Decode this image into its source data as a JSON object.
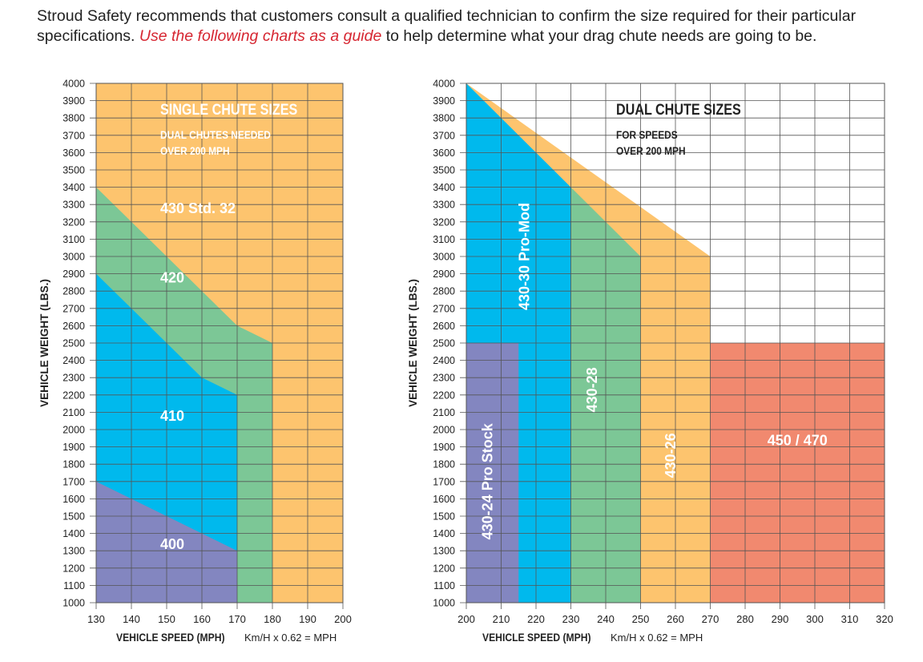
{
  "intro": {
    "text_before": "Stroud Safety recommends that customers consult a qualified technician to confirm the size required for their particular specifications.",
    "link_text": "Use the following charts as a guide",
    "text_after": "to help determine what your drag chute needs are going to be."
  },
  "colors": {
    "orange": "#fdc46e",
    "green": "#7cc796",
    "blue": "#00b9ed",
    "purple": "#8386c0",
    "salmon": "#f1896f",
    "grid": "#555555",
    "title_white": "#ffffff",
    "title_dark": "#222222"
  },
  "chart_data": [
    {
      "type": "area",
      "name": "single",
      "title": "SINGLE CHUTE SIZES",
      "subtitle": [
        "DUAL CHUTES NEEDED",
        "OVER 200 MPH"
      ],
      "xlabel": "VEHICLE SPEED (MPH)",
      "xlabel_note": "Km/H x 0.62 = MPH",
      "ylabel": "VEHICLE WEIGHT (LBS.)",
      "xlim": [
        130,
        200
      ],
      "ylim": [
        1000,
        4000
      ],
      "x_ticks": [
        130,
        140,
        150,
        160,
        170,
        180,
        190,
        200
      ],
      "y_ticks": [
        1000,
        1100,
        1200,
        1300,
        1400,
        1500,
        1600,
        1700,
        1800,
        1900,
        2000,
        2100,
        2200,
        2300,
        2400,
        2500,
        2600,
        2700,
        2800,
        2900,
        3000,
        3100,
        3200,
        3300,
        3400,
        3500,
        3600,
        3700,
        3800,
        3900,
        4000
      ],
      "x_tick_labels": [
        "130",
        "140",
        "150",
        "160",
        "170",
        "180",
        "190",
        "200"
      ],
      "y_tick_labels": [
        "1000",
        "1100",
        "1200",
        "1300",
        "1400",
        "1500",
        "1600",
        "1700",
        "1800",
        "1900",
        "2000",
        "2100",
        "2200",
        "2300",
        "2400",
        "2500",
        "2600",
        "2700",
        "2800",
        "2900",
        "3000",
        "3100",
        "3200",
        "3300",
        "3400",
        "3500",
        "3600",
        "3700",
        "3800",
        "3900",
        "4000"
      ],
      "regions": [
        {
          "label": "430 Std. 32",
          "color": "orange",
          "label_at": [
            150,
            3250
          ],
          "points": [
            [
              130,
              1000
            ],
            [
              200,
              1000
            ],
            [
              200,
              4000
            ],
            [
              130,
              4000
            ]
          ]
        },
        {
          "label": "420",
          "color": "green",
          "label_at": [
            150,
            2850
          ],
          "points": [
            [
              130,
              1000
            ],
            [
              180,
              1000
            ],
            [
              180,
              2500
            ],
            [
              170,
              2600
            ],
            [
              150,
              3000
            ],
            [
              140,
              3200
            ],
            [
              130,
              3400
            ]
          ]
        },
        {
          "label": "410",
          "color": "blue",
          "label_at": [
            150,
            2050
          ],
          "points": [
            [
              130,
              1000
            ],
            [
              170,
              1000
            ],
            [
              170,
              2200
            ],
            [
              160,
              2300
            ],
            [
              150,
              2500
            ],
            [
              140,
              2700
            ],
            [
              130,
              2900
            ]
          ]
        },
        {
          "label": "400",
          "color": "purple",
          "label_at": [
            150,
            1310
          ],
          "points": [
            [
              130,
              1000
            ],
            [
              170,
              1000
            ],
            [
              170,
              1300
            ],
            [
              160,
              1400
            ],
            [
              150,
              1500
            ],
            [
              130,
              1700
            ]
          ]
        }
      ]
    },
    {
      "type": "area",
      "name": "dual",
      "title": "DUAL CHUTE SIZES",
      "subtitle": [
        "FOR SPEEDS",
        "OVER 200 MPH"
      ],
      "xlabel": "VEHICLE SPEED (MPH)",
      "xlabel_note": "Km/H x 0.62 = MPH",
      "ylabel": "VEHICLE WEIGHT (LBS.)",
      "xlim": [
        200,
        320
      ],
      "ylim": [
        1000,
        4000
      ],
      "x_ticks": [
        200,
        210,
        220,
        230,
        240,
        250,
        260,
        270,
        280,
        290,
        300,
        310,
        320
      ],
      "y_ticks": [
        1000,
        1100,
        1200,
        1300,
        1400,
        1500,
        1600,
        1700,
        1800,
        1900,
        2000,
        2100,
        2200,
        2300,
        2400,
        2500,
        2600,
        2700,
        2800,
        2900,
        3000,
        3100,
        3200,
        3300,
        3400,
        3500,
        3600,
        3700,
        3800,
        3900,
        4000
      ],
      "x_tick_labels": [
        "200",
        "210",
        "220",
        "230",
        "240",
        "250",
        "260",
        "270",
        "280",
        "290",
        "300",
        "310",
        "320"
      ],
      "y_tick_labels": [
        "1000",
        "1100",
        "1200",
        "1300",
        "1400",
        "1500",
        "1600",
        "1700",
        "1800",
        "1900",
        "2000",
        "2100",
        "2200",
        "2300",
        "2400",
        "2500",
        "2600",
        "2700",
        "2800",
        "2900",
        "3000",
        "3100",
        "3200",
        "3300",
        "3400",
        "3500",
        "3600",
        "3700",
        "3800",
        "3900",
        "4000"
      ],
      "regions": [
        {
          "label": "430-26",
          "color": "orange",
          "vertical": true,
          "label_at": [
            260,
            1850
          ],
          "points": [
            [
              200,
              1000
            ],
            [
              270,
              1000
            ],
            [
              270,
              3000
            ],
            [
              200,
              4000
            ]
          ]
        },
        {
          "label": "430-28",
          "color": "green",
          "vertical": true,
          "label_at": [
            237.5,
            2230
          ],
          "points": [
            [
              230,
              1000
            ],
            [
              250,
              1000
            ],
            [
              250,
              3000
            ],
            [
              230,
              3400
            ]
          ]
        },
        {
          "label": "430-30 Pro-Mod",
          "color": "blue",
          "vertical": true,
          "label_at": [
            218,
            3000
          ],
          "points": [
            [
              200,
              1000
            ],
            [
              230,
              1000
            ],
            [
              230,
              3400
            ],
            [
              200,
              4000
            ]
          ]
        },
        {
          "label": "430-24 Pro Stock",
          "color": "purple",
          "vertical": true,
          "label_at": [
            207.5,
            1700
          ],
          "points": [
            [
              200,
              1000
            ],
            [
              215,
              1000
            ],
            [
              215,
              2500
            ],
            [
              200,
              2500
            ]
          ]
        },
        {
          "label": "450 / 470",
          "color": "salmon",
          "label_at": [
            295,
            1910
          ],
          "points": [
            [
              270,
              1000
            ],
            [
              320,
              1000
            ],
            [
              320,
              2500
            ],
            [
              270,
              2500
            ]
          ]
        }
      ]
    }
  ]
}
